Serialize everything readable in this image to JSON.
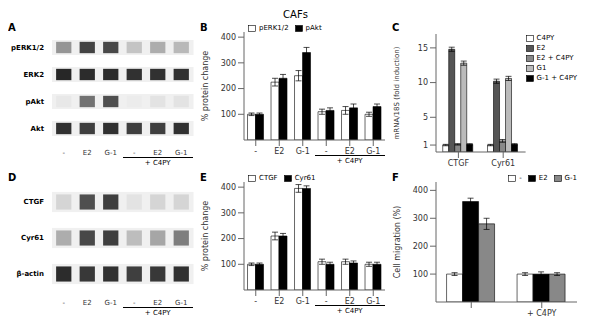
{
  "title": "CAFs",
  "chart_data": [
    {
      "type": "heatmap",
      "title": "A",
      "rows": [
        "pERK1/2",
        "ERK2",
        "pAkt",
        "Akt"
      ],
      "categories": [
        "-",
        "E2",
        "G-1",
        "-",
        "E2",
        "G-1"
      ],
      "cells": [
        [
          0.45,
          0.8,
          0.78,
          0.25,
          0.35,
          0.3
        ],
        [
          0.92,
          0.9,
          0.9,
          0.88,
          0.88,
          0.88
        ],
        [
          0.1,
          0.6,
          0.75,
          0.08,
          0.12,
          0.12
        ],
        [
          0.88,
          0.82,
          0.88,
          0.82,
          0.82,
          0.88
        ]
      ],
      "annotation": "+ C4PY"
    },
    {
      "type": "bar",
      "title": "B",
      "categories": [
        "-",
        "E2",
        "G-1",
        "-",
        "E2",
        "G-1"
      ],
      "series": [
        {
          "name": "pERK1/2",
          "color": "white",
          "values": [
            100,
            225,
            250,
            110,
            115,
            100
          ],
          "errors": [
            5,
            15,
            20,
            10,
            15,
            8
          ]
        },
        {
          "name": "pAkt",
          "color": "black",
          "values": [
            100,
            240,
            340,
            115,
            125,
            130
          ],
          "errors": [
            5,
            15,
            20,
            10,
            15,
            10
          ]
        }
      ],
      "ylabel": "% protein change",
      "ylim": [
        0,
        420
      ],
      "yticks": [
        100,
        200,
        300,
        400
      ],
      "legend": "upper left",
      "annotation": "+ C4PY"
    },
    {
      "type": "bar",
      "title": "C",
      "categories": [
        "CTGF",
        "Cyr61"
      ],
      "series": [
        {
          "name": "C4PY",
          "color": "white",
          "values": [
            1.0,
            1.0
          ],
          "errors": [
            0.1,
            0.1
          ]
        },
        {
          "name": "E2",
          "color": "#555555",
          "values": [
            14.8,
            10.2
          ],
          "errors": [
            0.3,
            0.3
          ]
        },
        {
          "name": "E2 + C4PY",
          "color": "#888888",
          "values": [
            1.1,
            1.6
          ],
          "errors": [
            0.1,
            0.2
          ]
        },
        {
          "name": "G1",
          "color": "#bbbbbb",
          "values": [
            12.8,
            10.6
          ],
          "errors": [
            0.3,
            0.3
          ]
        },
        {
          "name": "G-1 + C4PY",
          "color": "black",
          "values": [
            1.1,
            1.1
          ],
          "errors": [
            0.1,
            0.1
          ]
        }
      ],
      "ylabel": "mRNA/18S (fold induction)",
      "ylim": [
        0,
        17
      ],
      "yticks": [
        1,
        5,
        10,
        15
      ],
      "legend": "upper right"
    },
    {
      "type": "heatmap",
      "title": "D",
      "rows": [
        "CTGF",
        "Cyr61",
        "β-actin"
      ],
      "categories": [
        "-",
        "E2",
        "G-1",
        "-",
        "E2",
        "G-1"
      ],
      "cells": [
        [
          0.18,
          0.75,
          0.82,
          0.12,
          0.18,
          0.18
        ],
        [
          0.35,
          0.78,
          0.82,
          0.28,
          0.38,
          0.55
        ],
        [
          0.9,
          0.85,
          0.88,
          0.82,
          0.85,
          0.88
        ]
      ],
      "annotation": "+ C4PY"
    },
    {
      "type": "bar",
      "title": "E",
      "categories": [
        "-",
        "E2",
        "G-1",
        "-",
        "E2",
        "G-1"
      ],
      "series": [
        {
          "name": "CTGF",
          "color": "white",
          "values": [
            100,
            210,
            395,
            110,
            110,
            100
          ],
          "errors": [
            5,
            15,
            15,
            10,
            10,
            8
          ]
        },
        {
          "name": "Cyr61",
          "color": "black",
          "values": [
            100,
            210,
            395,
            100,
            105,
            100
          ],
          "errors": [
            5,
            10,
            10,
            8,
            8,
            8
          ]
        }
      ],
      "ylabel": "% protein change",
      "ylim": [
        0,
        420
      ],
      "yticks": [
        100,
        200,
        300,
        400
      ],
      "legend": "upper left",
      "annotation": "+ C4PY"
    },
    {
      "type": "bar",
      "title": "F",
      "categories": [
        null,
        "+ C4PY"
      ],
      "series": [
        {
          "name": "-",
          "color": "white",
          "values": [
            100,
            100
          ],
          "errors": [
            5,
            5
          ]
        },
        {
          "name": "E2",
          "color": "black",
          "values": [
            360,
            100
          ],
          "errors": [
            12,
            8
          ]
        },
        {
          "name": "G-1",
          "color": "#888888",
          "values": [
            280,
            100
          ],
          "errors": [
            20,
            5
          ]
        }
      ],
      "ylabel": "Cell migration (%)",
      "ylim": [
        0,
        430
      ],
      "yticks": [
        100,
        200,
        300,
        400
      ],
      "legend": "upper right"
    }
  ]
}
